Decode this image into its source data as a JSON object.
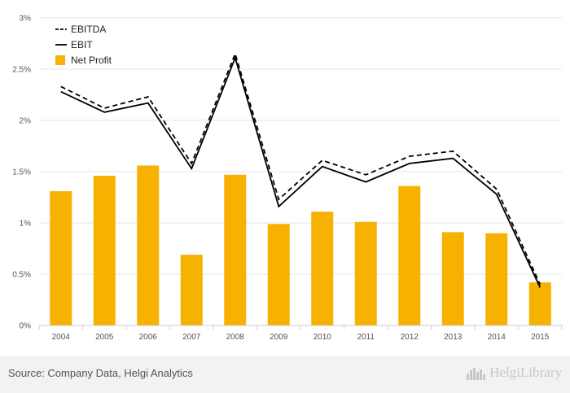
{
  "chart_data": {
    "type": "bar",
    "title": "",
    "xlabel": "",
    "ylabel": "",
    "ylim": [
      0,
      3
    ],
    "y_ticks": [
      0,
      0.5,
      1,
      1.5,
      2,
      2.5,
      3
    ],
    "y_tick_labels": [
      "0%",
      "0.5%",
      "1%",
      "1.5%",
      "2%",
      "2.5%",
      "3%"
    ],
    "grid": true,
    "legend_position": "top-left",
    "categories": [
      "2004",
      "2005",
      "2006",
      "2007",
      "2008",
      "2009",
      "2010",
      "2011",
      "2012",
      "2013",
      "2014",
      "2015"
    ],
    "series": [
      {
        "name": "EBITDA",
        "kind": "line",
        "style": "dashed",
        "color": "#000000",
        "values": [
          2.33,
          2.12,
          2.23,
          1.58,
          2.65,
          1.23,
          1.61,
          1.47,
          1.65,
          1.7,
          1.33,
          0.4
        ]
      },
      {
        "name": "EBIT",
        "kind": "line",
        "style": "solid",
        "color": "#000000",
        "values": [
          2.28,
          2.08,
          2.17,
          1.53,
          2.61,
          1.16,
          1.55,
          1.4,
          1.58,
          1.63,
          1.28,
          0.37
        ]
      },
      {
        "name": "Net Profit",
        "kind": "bar",
        "color": "#f7b100",
        "values": [
          1.31,
          1.46,
          1.56,
          0.69,
          1.47,
          0.99,
          1.11,
          1.01,
          1.36,
          0.91,
          0.9,
          0.42
        ]
      }
    ]
  },
  "footer": {
    "source": "Source: Company Data, Helgi Analytics",
    "brand": "HelgiLibrary"
  }
}
